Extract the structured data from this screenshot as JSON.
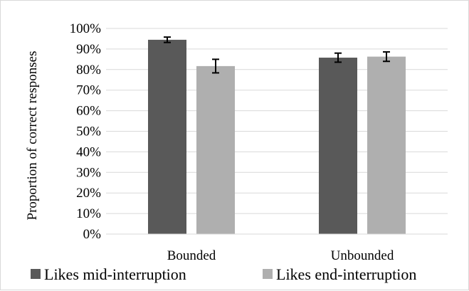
{
  "chart_data": {
    "type": "bar",
    "categories": [
      "Bounded",
      "Unbounded"
    ],
    "series": [
      {
        "name": "Likes mid-interruption",
        "values": [
          94.5,
          85.8
        ],
        "error": [
          1.3,
          2.2
        ],
        "color": "#595959"
      },
      {
        "name": "Likes end-interruption",
        "values": [
          81.7,
          86.3
        ],
        "error": [
          3.3,
          2.3
        ],
        "color": "#afafaf"
      }
    ],
    "ylabel": "Proportion of correct responses",
    "ylim": [
      0,
      100
    ],
    "yticks": [
      "0%",
      "10%",
      "20%",
      "30%",
      "40%",
      "50%",
      "60%",
      "70%",
      "80%",
      "90%",
      "100%"
    ],
    "grid": true,
    "legend_position": "bottom",
    "gridline_color": "#d9d9d9",
    "errorbar_color": "#000000"
  }
}
